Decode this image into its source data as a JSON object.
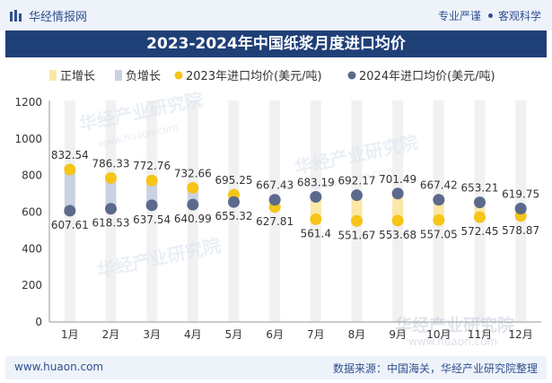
{
  "header": {
    "brand": "华经情报网",
    "right_items": [
      "专业严谨",
      "客观科学"
    ]
  },
  "colors": {
    "pos_band": "#fbe8a6",
    "neg_band": "#c9d1e3",
    "series_2023": "#f5c518",
    "series_2024": "#5b6a8c",
    "title_bg": "#1f3f77"
  },
  "watermark": {
    "cn": "华经产业研究院",
    "en": "www.huaon.com"
  },
  "chart_data": {
    "type": "line",
    "title": "2023-2024年中国纸浆月度进口均价",
    "legend": [
      "正增长",
      "负增长",
      "2023年进口均价(美元/吨)",
      "2024年进口均价(美元/吨)"
    ],
    "legend_position": "top",
    "categories": [
      "1月",
      "2月",
      "3月",
      "4月",
      "5月",
      "6月",
      "7月",
      "8月",
      "9月",
      "10月",
      "11月",
      "12月"
    ],
    "series": [
      {
        "name": "2023年进口均价(美元/吨)",
        "values": [
          832.54,
          786.33,
          772.76,
          732.66,
          695.25,
          627.81,
          561.4,
          551.67,
          553.68,
          557.05,
          572.45,
          578.87
        ],
        "labels": [
          "832.54",
          "786.33",
          "772.76",
          "732.66",
          "695.25",
          "627.81",
          "561.4",
          "551.67",
          "553.68",
          "557.05",
          "572.45",
          "578.87"
        ]
      },
      {
        "name": "2024年进口均价(美元/吨)",
        "values": [
          607.61,
          618.53,
          637.54,
          640.99,
          655.32,
          667.43,
          683.19,
          692.17,
          701.49,
          667.42,
          653.21,
          619.75
        ],
        "labels": [
          "607.61",
          "618.53",
          "637.54",
          "640.99",
          "655.32",
          "667.43",
          "683.19",
          "692.17",
          "701.49",
          "667.42",
          "653.21",
          "619.75"
        ]
      }
    ],
    "yticks": [
      "0",
      "200",
      "400",
      "600",
      "800",
      "1000",
      "1200"
    ],
    "ylim": [
      0,
      1200
    ],
    "grid": false
  },
  "footer": {
    "site": "www.huaon.com",
    "source": "数据来源：中国海关，华经产业研究院整理"
  }
}
